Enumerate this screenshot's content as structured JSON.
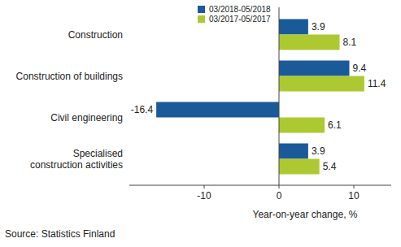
{
  "chart_data": {
    "type": "bar",
    "orientation": "horizontal",
    "categories": [
      "Construction",
      "Construction of buildings",
      "Civil engineering",
      "Specialised construction activities"
    ],
    "series": [
      {
        "name": "03/2018-05/2018",
        "color": "#1b5a99",
        "values": [
          3.9,
          9.4,
          -16.4,
          3.9
        ]
      },
      {
        "name": "03/2017-05/2017",
        "color": "#adc932",
        "values": [
          8.1,
          11.4,
          6.1,
          5.4
        ]
      }
    ],
    "xlim": [
      -20,
      15
    ],
    "xticks": [
      -10,
      0,
      10
    ],
    "x_label": "Year-on-year change, %",
    "source": "Source: Statistics Finland",
    "data_labels": true,
    "legend": "top",
    "grid": false
  }
}
